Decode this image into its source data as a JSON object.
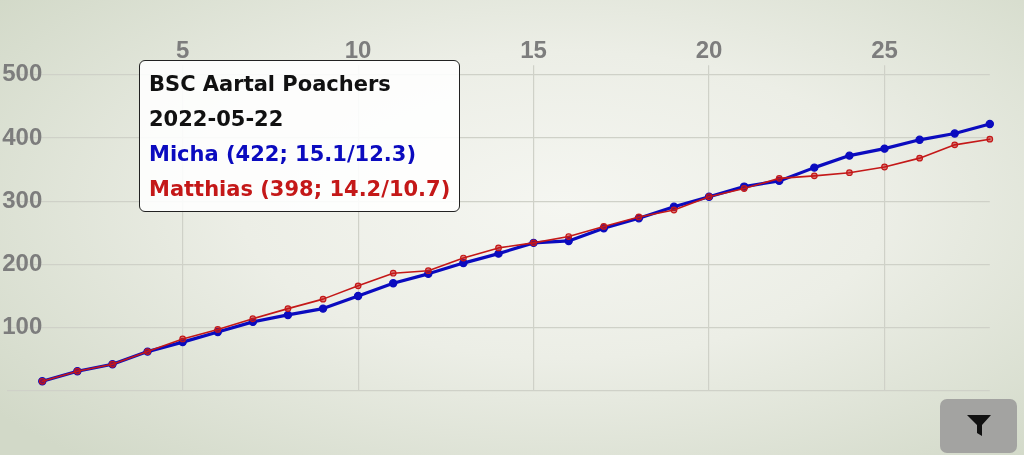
{
  "chart_data": {
    "type": "line",
    "title": "BSC Aartal Poachers",
    "subtitle": "2022-05-22",
    "x": [
      1,
      2,
      3,
      4,
      5,
      6,
      7,
      8,
      9,
      10,
      11,
      12,
      13,
      14,
      15,
      16,
      17,
      18,
      19,
      20,
      21,
      22,
      23,
      24,
      25,
      26,
      27,
      28
    ],
    "xlim": [
      0,
      28
    ],
    "xticks": [
      5,
      10,
      15,
      20,
      25
    ],
    "ylim": [
      0,
      515
    ],
    "yticks": [
      {
        "value": 0,
        "label": null
      },
      100,
      200,
      300,
      400,
      500
    ],
    "series": [
      {
        "name": "Micha (422; 15.1/12.3)",
        "color": "#0b0bbf",
        "values": [
          15,
          31,
          42,
          62,
          77,
          93,
          109,
          120,
          130,
          150,
          170,
          185,
          202,
          217,
          234,
          237,
          257,
          273,
          291,
          307,
          323,
          332,
          353,
          372,
          383,
          397,
          407,
          422
        ]
      },
      {
        "name": "Matthias (398; 14.2/10.7)",
        "color": "#c41818",
        "values": [
          15,
          31,
          42,
          62,
          82,
          97,
          114,
          130,
          145,
          166,
          186,
          190,
          210,
          226,
          234,
          244,
          260,
          275,
          286,
          307,
          320,
          336,
          340,
          345,
          354,
          368,
          389,
          398
        ]
      }
    ],
    "grid": true,
    "legend": "top left",
    "marker": "circle",
    "line_style": "solid"
  }
}
